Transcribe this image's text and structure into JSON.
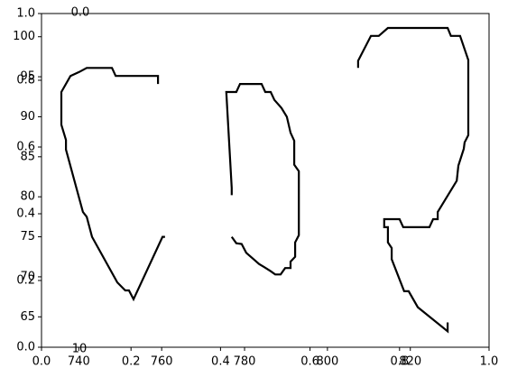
{
  "chart_data": {
    "type": "line",
    "outer_xlim": [
      0,
      1
    ],
    "outer_xticks": [
      0.0,
      0.2,
      0.4,
      0.6,
      0.8,
      1.0
    ],
    "outer_ylim": [
      0,
      1
    ],
    "outer_yticks": [
      0.0,
      0.2,
      0.4,
      0.6,
      0.8,
      1.0
    ],
    "xlim": [
      731,
      839
    ],
    "xticks": [
      740,
      760,
      780,
      800,
      820
    ],
    "ylim": [
      61.2,
      102.9
    ],
    "yticks": [
      65,
      70,
      75,
      80,
      85,
      90,
      95,
      100
    ],
    "stray_labels": [
      "0.0",
      "10"
    ],
    "series": [
      {
        "color": "#000000",
        "x": [
          759.1,
          759.1,
          748.9,
          748,
          741.9,
          740.1,
          738,
          735.8,
          735.8,
          736.9,
          736.9,
          741,
          741.9,
          743.2,
          749.3,
          751.2,
          752.1,
          753.2,
          760.2,
          760.8
        ],
        "values": [
          94.1,
          95.1,
          95.1,
          96.1,
          96.1,
          95.6,
          95.1,
          93.1,
          89,
          87.1,
          85.9,
          78.1,
          77.5,
          75,
          69.3,
          68.3,
          68.3,
          67.2,
          75,
          75
        ]
      },
      {
        "color": "#000000",
        "x": [
          776.9,
          776.9,
          775.6,
          778,
          778.9,
          784.1,
          785,
          786.3,
          787.2,
          788.9,
          790.2,
          791.1,
          792,
          792,
          793.1,
          793.1,
          792.2,
          792.2,
          791.1,
          791.1,
          789.8,
          788.7,
          787.4,
          786.3,
          784.8,
          783.5,
          782.4,
          780.4,
          779.3,
          778,
          776.9
        ],
        "values": [
          80.2,
          81.1,
          93.1,
          93.1,
          94.1,
          94.1,
          93.1,
          93.1,
          92.1,
          91.1,
          90,
          88,
          87,
          84,
          83.2,
          75.2,
          74.3,
          72.5,
          71.9,
          71.1,
          71.1,
          70.3,
          70.3,
          70.7,
          71.2,
          71.6,
          72.1,
          73,
          74.1,
          74.2,
          75
        ]
      },
      {
        "color": "#000000",
        "x": [
          807.4,
          807.4,
          810.5,
          812.4,
          814.6,
          829,
          829.8,
          832,
          834,
          834,
          833.1,
          832.9,
          831.6,
          831.2,
          826.6,
          826.6,
          825.5,
          824.6,
          818.3,
          817.4,
          813.7,
          813.7,
          814.6,
          814.6,
          815.5,
          815.5,
          818.5,
          819.6,
          821.8,
          829,
          829
        ],
        "values": [
          96.1,
          97,
          100.1,
          100.1,
          101.1,
          101.1,
          100.1,
          100.1,
          97.1,
          87.7,
          86.8,
          86,
          83.9,
          82,
          78.1,
          77.2,
          77.2,
          76.2,
          76.2,
          77.2,
          77.2,
          76.2,
          76.2,
          74.3,
          73.6,
          72.2,
          68.2,
          68.2,
          66.2,
          63.2,
          64.3
        ]
      }
    ]
  }
}
